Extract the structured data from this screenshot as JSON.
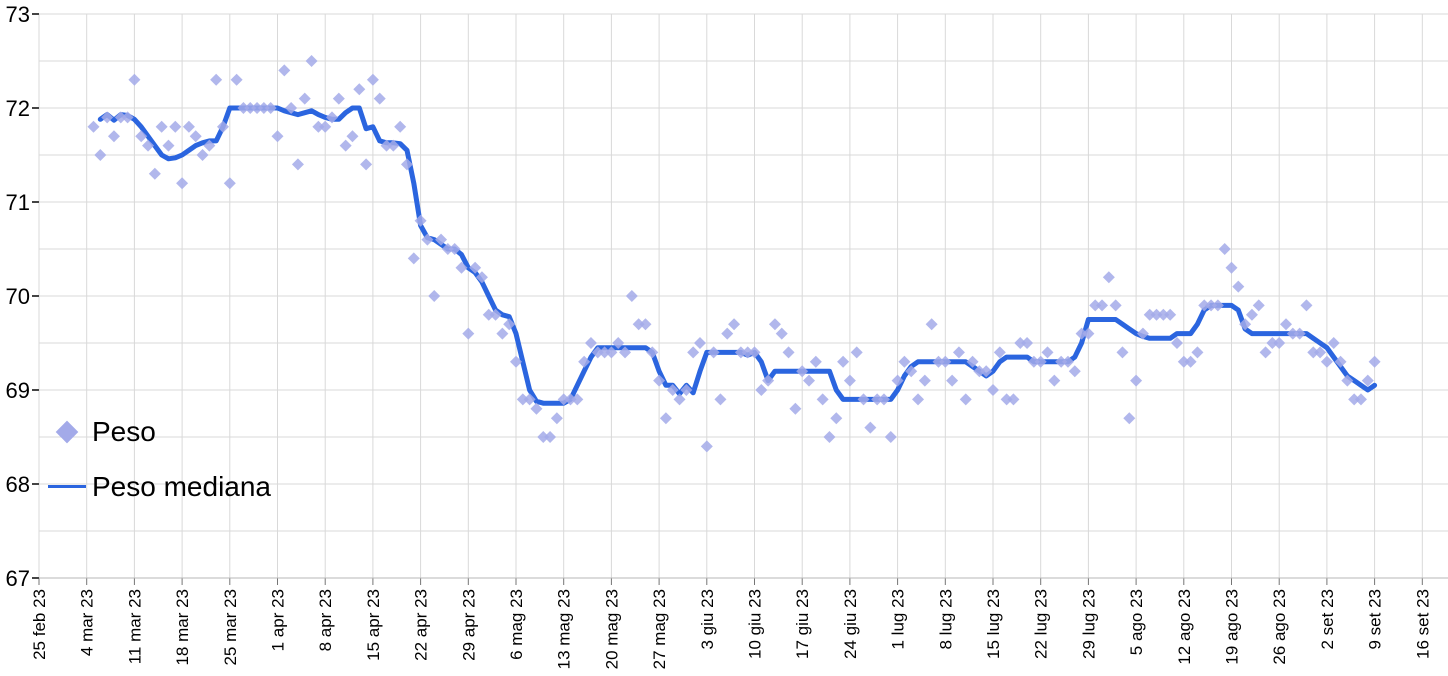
{
  "chart_data": {
    "type": "scatter+line",
    "title": "",
    "x_axis": {
      "first_tick_date": "2023-02-25",
      "tick_interval_days": 7,
      "label_rotation_deg": -90,
      "tick_labels": [
        "25 feb 23",
        "4 mar 23",
        "11 mar 23",
        "18 mar 23",
        "25 mar 23",
        "1 apr 23",
        "8 apr 23",
        "15 apr 23",
        "22 apr 23",
        "29 apr 23",
        "6 mag 23",
        "13 mag 23",
        "20 mag 23",
        "27 mag 23",
        "3 giu 23",
        "10 giu 23",
        "17 giu 23",
        "24 giu 23",
        "1 lug 23",
        "8 lug 23",
        "15 lug 23",
        "22 lug 23",
        "29 lug 23",
        "5 ago 23",
        "12 ago 23",
        "19 ago 23",
        "26 ago 23",
        "2 set 23",
        "9 set 23",
        "16 set 23"
      ]
    },
    "y_axis": {
      "min": 67,
      "max": 73,
      "tick_labels": [
        "73",
        "72",
        "71",
        "70",
        "69",
        "68",
        "67"
      ],
      "minor_gridline_step": 0.5
    },
    "grid": "on",
    "legend": {
      "position": "inside-middle-left",
      "entries": [
        "Peso",
        "Peso mediana"
      ]
    },
    "series": [
      {
        "name": "Peso",
        "type": "scatter",
        "marker": "diamond",
        "color": "#a3aae9",
        "start_date": "2023-03-05",
        "days_after_first_tick": 8,
        "daily_values": [
          71.8,
          71.5,
          71.9,
          71.7,
          71.9,
          71.9,
          72.3,
          71.7,
          71.6,
          71.3,
          71.8,
          71.6,
          71.8,
          71.2,
          71.8,
          71.7,
          71.5,
          71.6,
          72.3,
          71.8,
          71.2,
          72.3,
          72.0,
          72.0,
          72.0,
          72.0,
          72.0,
          71.7,
          72.4,
          72.0,
          71.4,
          72.1,
          72.5,
          71.8,
          71.8,
          71.9,
          72.1,
          71.6,
          71.7,
          72.2,
          71.4,
          72.3,
          72.1,
          71.6,
          71.6,
          71.8,
          71.4,
          70.4,
          70.8,
          70.6,
          70.0,
          70.6,
          70.5,
          70.5,
          70.3,
          69.6,
          70.3,
          70.2,
          69.8,
          69.8,
          69.6,
          69.7,
          69.3,
          68.9,
          68.9,
          68.8,
          68.5,
          68.5,
          68.7,
          68.9,
          68.9,
          68.9,
          69.3,
          69.5,
          69.4,
          69.4,
          69.4,
          69.5,
          69.4,
          70.0,
          69.7,
          69.7,
          69.4,
          69.1,
          68.7,
          69.0,
          68.9,
          69.0,
          69.4,
          69.5,
          68.4,
          69.4,
          68.9,
          69.6,
          69.7,
          69.4,
          69.4,
          69.4,
          69.0,
          69.1,
          69.7,
          69.6,
          69.4,
          68.8,
          69.2,
          69.1,
          69.3,
          68.9,
          68.5,
          68.7,
          69.3,
          69.1,
          69.4,
          68.9,
          68.6,
          68.9,
          68.9,
          68.5,
          69.1,
          69.3,
          69.2,
          68.9,
          69.1,
          69.7,
          69.3,
          69.3,
          69.1,
          69.4,
          68.9,
          69.3,
          69.2,
          69.2,
          69.0,
          69.4,
          68.9,
          68.9,
          69.5,
          69.5,
          69.3,
          69.3,
          69.4,
          69.1,
          69.3,
          69.3,
          69.2,
          69.6,
          69.6,
          69.9,
          69.9,
          70.2,
          69.9,
          69.4,
          68.7,
          69.1,
          69.6,
          69.8,
          69.8,
          69.8,
          69.8,
          69.5,
          69.3,
          69.3,
          69.4,
          69.9,
          69.9,
          69.9,
          70.5,
          70.3,
          70.1,
          69.7,
          69.8,
          69.9,
          69.4,
          69.5,
          69.5,
          69.7,
          69.6,
          69.6,
          69.9,
          69.4,
          69.4,
          69.3,
          69.5,
          69.3,
          69.1,
          68.9,
          68.9,
          69.1,
          69.3
        ]
      },
      {
        "name": "Peso mediana",
        "type": "line",
        "color": "#2b65df",
        "start_date": "2023-03-05",
        "days_after_first_tick": 8,
        "daily_values": [
          null,
          71.88,
          71.93,
          71.87,
          71.93,
          71.92,
          71.88,
          71.8,
          71.7,
          71.6,
          71.5,
          71.46,
          71.47,
          71.5,
          71.55,
          71.6,
          71.63,
          71.65,
          71.65,
          71.8,
          72.0,
          72.0,
          72.0,
          72.0,
          72.0,
          72.0,
          72.0,
          72.0,
          71.97,
          71.95,
          71.93,
          71.95,
          71.97,
          71.93,
          71.9,
          71.88,
          71.88,
          71.95,
          72.0,
          72.0,
          71.78,
          71.8,
          71.65,
          71.63,
          71.63,
          71.62,
          71.55,
          71.2,
          70.75,
          70.62,
          70.6,
          70.55,
          70.5,
          70.5,
          70.44,
          70.3,
          70.25,
          70.15,
          70.0,
          69.85,
          69.8,
          69.78,
          69.6,
          69.3,
          69.0,
          68.88,
          68.86,
          68.86,
          68.86,
          68.86,
          68.9,
          69.05,
          69.2,
          69.35,
          69.45,
          69.45,
          69.45,
          69.45,
          69.45,
          69.45,
          69.45,
          69.45,
          69.4,
          69.2,
          69.05,
          69.05,
          68.96,
          69.05,
          68.97,
          69.2,
          69.4,
          69.4,
          69.4,
          69.4,
          69.4,
          69.4,
          69.37,
          69.4,
          69.3,
          69.1,
          69.2,
          69.2,
          69.2,
          69.2,
          69.2,
          69.2,
          69.2,
          69.2,
          69.2,
          69.0,
          68.9,
          68.9,
          68.9,
          68.9,
          68.9,
          68.9,
          68.9,
          68.9,
          69.0,
          69.15,
          69.25,
          69.3,
          69.3,
          69.3,
          69.3,
          69.3,
          69.3,
          69.3,
          69.3,
          69.25,
          69.2,
          69.15,
          69.2,
          69.3,
          69.35,
          69.35,
          69.35,
          69.35,
          69.3,
          69.3,
          69.3,
          69.3,
          69.3,
          69.3,
          69.35,
          69.5,
          69.75,
          69.75,
          69.75,
          69.75,
          69.75,
          69.7,
          69.65,
          69.6,
          69.57,
          69.55,
          69.55,
          69.55,
          69.55,
          69.6,
          69.6,
          69.6,
          69.7,
          69.85,
          69.9,
          69.9,
          69.9,
          69.9,
          69.85,
          69.65,
          69.6,
          69.6,
          69.6,
          69.6,
          69.6,
          69.6,
          69.6,
          69.6,
          69.6,
          69.55,
          69.5,
          69.45,
          69.35,
          69.25,
          69.15,
          69.1,
          69.05,
          69.0,
          69.05
        ]
      }
    ]
  },
  "colors": {
    "scatter_marker": "#a3aae9",
    "median_line": "#2b65df",
    "gridline": "#d9d9d9",
    "axis_line": "#b7b7b7",
    "tick_mark": "#757575",
    "axis_text": "#000000",
    "background": "#ffffff"
  }
}
